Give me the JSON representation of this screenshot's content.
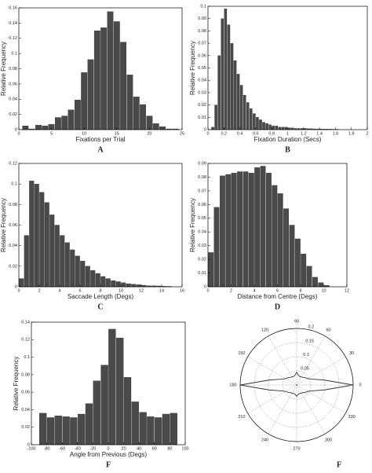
{
  "chart_data": [
    {
      "type": "histogram",
      "panel_label": "A",
      "xlabel": "Fixations per Trial",
      "ylabel": "Relative Frequency",
      "color": "#4a4a4a",
      "bins": [
        0.5,
        1.5,
        2.5,
        3.5,
        4.5,
        5.5,
        6.5,
        7.5,
        8.5,
        9.5,
        10.5,
        11.5,
        12.5,
        13.5,
        14.5,
        15.5,
        16.5,
        17.5,
        18.5,
        19.5,
        20.5,
        21.5,
        22.5,
        23.5,
        24.5
      ],
      "values": [
        0.005,
        0.001,
        0.006,
        0.005,
        0.007,
        0.016,
        0.018,
        0.026,
        0.039,
        0.075,
        0.092,
        0.13,
        0.134,
        0.155,
        0.142,
        0.115,
        0.072,
        0.043,
        0.033,
        0.018,
        0.008,
        0.004,
        0.001,
        0.001
      ],
      "xlim": [
        0,
        25
      ],
      "ylim": [
        0,
        0.16
      ],
      "xticks": [
        0,
        5,
        10,
        15,
        20,
        25
      ],
      "yticks": [
        0,
        0.02,
        0.04,
        0.06,
        0.08,
        0.1,
        0.12,
        0.14,
        0.16
      ]
    },
    {
      "type": "histogram",
      "panel_label": "B",
      "xlabel": "Fixation Duration (Secs)",
      "ylabel": "Relative Frequency",
      "color": "#4a4a4a",
      "bins": [
        0.04,
        0.08,
        0.12,
        0.16,
        0.2,
        0.24,
        0.28,
        0.32,
        0.36,
        0.4,
        0.44,
        0.48,
        0.52,
        0.56,
        0.6,
        0.64,
        0.68,
        0.72,
        0.76,
        0.8,
        0.84,
        0.88,
        0.92,
        0.96,
        1,
        1.04,
        1.08,
        1.12,
        1.16,
        1.2,
        1.24,
        1.28,
        1.32,
        1.36,
        1.4,
        1.44,
        1.48,
        1.52,
        1.56,
        1.6,
        1.64
      ],
      "values": [
        0.002,
        0.02,
        0.06,
        0.09,
        0.098,
        0.085,
        0.07,
        0.056,
        0.045,
        0.036,
        0.028,
        0.022,
        0.017,
        0.013,
        0.01,
        0.008,
        0.006,
        0.005,
        0.004,
        0.003,
        0.003,
        0.002,
        0.002,
        0.002,
        0.0015,
        0.0015,
        0.001,
        0.001,
        0.001,
        0.001,
        0.0008,
        0.0008,
        0.0006,
        0.0006,
        0.0005,
        0.0005,
        0.0004,
        0.0004,
        0.0003,
        0.0003
      ],
      "xlim": [
        0,
        2
      ],
      "ylim": [
        0,
        0.1
      ],
      "xticks": [
        0,
        0.2,
        0.4,
        0.6,
        0.8,
        1,
        1.2,
        1.4,
        1.6,
        1.8,
        2
      ],
      "yticks": [
        0,
        0.01,
        0.02,
        0.03,
        0.04,
        0.05,
        0.06,
        0.07,
        0.08,
        0.09,
        0.1
      ]
    },
    {
      "type": "histogram",
      "panel_label": "C",
      "xlabel": "Saccade Length (Degs)",
      "ylabel": "Relative Frequency",
      "color": "#4a4a4a",
      "bins": [
        0,
        0.5,
        1,
        1.5,
        2,
        2.5,
        3,
        3.5,
        4,
        4.5,
        5,
        5.5,
        6,
        6.5,
        7,
        7.5,
        8,
        8.5,
        9,
        9.5,
        10,
        10.5,
        11,
        11.5,
        12,
        12.5,
        13,
        13.5,
        14,
        14.5,
        15
      ],
      "values": [
        0.008,
        0.05,
        0.103,
        0.1,
        0.092,
        0.082,
        0.07,
        0.06,
        0.05,
        0.043,
        0.036,
        0.03,
        0.025,
        0.02,
        0.016,
        0.013,
        0.01,
        0.008,
        0.006,
        0.005,
        0.004,
        0.003,
        0.0025,
        0.002,
        0.0015,
        0.001,
        0.001,
        0.0008,
        0.0005,
        0.0004
      ],
      "xlim": [
        0,
        16
      ],
      "ylim": [
        0,
        0.12
      ],
      "xticks": [
        0,
        2,
        4,
        6,
        8,
        10,
        12,
        14,
        16
      ],
      "yticks": [
        0,
        0.02,
        0.04,
        0.06,
        0.08,
        0.1,
        0.12
      ]
    },
    {
      "type": "histogram",
      "panel_label": "D",
      "xlabel": "Distance from Centre (Degs)",
      "ylabel": "Relative Frequency",
      "color": "#4a4a4a",
      "bins": [
        0,
        0.5,
        1,
        1.5,
        2,
        2.5,
        3,
        3.5,
        4,
        4.5,
        5,
        5.5,
        6,
        6.5,
        7,
        7.5,
        8,
        8.5,
        9,
        9.5,
        10,
        10.5
      ],
      "values": [
        0.025,
        0.058,
        0.081,
        0.082,
        0.083,
        0.084,
        0.084,
        0.083,
        0.087,
        0.088,
        0.083,
        0.074,
        0.068,
        0.057,
        0.045,
        0.035,
        0.024,
        0.015,
        0.007,
        0.003,
        0.001
      ],
      "xlim": [
        0,
        12
      ],
      "ylim": [
        0,
        0.09
      ],
      "xticks": [
        0,
        2,
        4,
        6,
        8,
        10,
        12
      ],
      "yticks": [
        0,
        0.01,
        0.02,
        0.03,
        0.04,
        0.05,
        0.06,
        0.07,
        0.08,
        0.09
      ]
    },
    {
      "type": "histogram",
      "panel_label": "F",
      "xlabel": "Angle from Previous (Degs)",
      "ylabel": "Relative Frequency",
      "color": "#4a4a4a",
      "bins": [
        -90,
        -80,
        -70,
        -60,
        -50,
        -40,
        -30,
        -20,
        -10,
        0,
        10,
        20,
        30,
        40,
        50,
        60,
        70,
        80,
        90
      ],
      "values": [
        0.036,
        0.031,
        0.033,
        0.032,
        0.031,
        0.035,
        0.047,
        0.073,
        0.091,
        0.132,
        0.122,
        0.077,
        0.049,
        0.037,
        0.032,
        0.031,
        0.035,
        0.036
      ],
      "xlim": [
        -100,
        100
      ],
      "ylim": [
        0,
        0.14
      ],
      "xticks": [
        -100,
        -80,
        -60,
        -40,
        -20,
        0,
        20,
        40,
        60,
        80,
        100
      ],
      "yticks": [
        0,
        0.02,
        0.04,
        0.06,
        0.08,
        0.1,
        0.12,
        0.14
      ]
    },
    {
      "type": "polar",
      "panel_label": "F",
      "color": "#333333",
      "theta": [
        0,
        10,
        20,
        30,
        40,
        50,
        60,
        70,
        80,
        90,
        100,
        110,
        120,
        130,
        140,
        150,
        160,
        170,
        180,
        190,
        200,
        210,
        220,
        230,
        240,
        250,
        260,
        270,
        280,
        290,
        300,
        310,
        320,
        330,
        340,
        350
      ],
      "values": [
        0.2,
        0.1,
        0.06,
        0.045,
        0.04,
        0.035,
        0.033,
        0.032,
        0.035,
        0.045,
        0.035,
        0.032,
        0.033,
        0.035,
        0.04,
        0.045,
        0.06,
        0.1,
        0.2,
        0.1,
        0.06,
        0.045,
        0.04,
        0.035,
        0.033,
        0.032,
        0.033,
        0.04,
        0.033,
        0.032,
        0.033,
        0.035,
        0.04,
        0.045,
        0.06,
        0.1
      ],
      "rlim": [
        0,
        0.2
      ],
      "rticks": [
        0.05,
        0.1,
        0.15,
        0.2
      ],
      "thetaticks": [
        0,
        30,
        60,
        90,
        120,
        150,
        180,
        210,
        240,
        270,
        300,
        330
      ]
    }
  ]
}
